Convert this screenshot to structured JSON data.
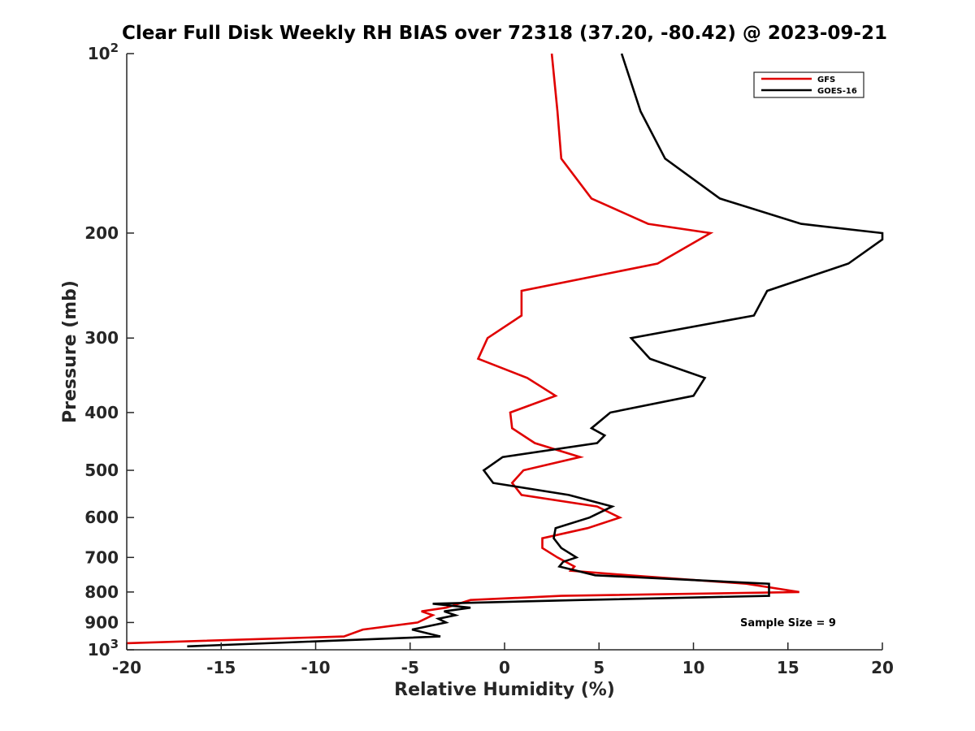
{
  "chart_data": {
    "type": "line",
    "title": "Clear Full Disk Weekly RH BIAS over 72318 (37.20, -80.42) @ 2023-09-21",
    "xlabel": "Relative Humidity (%)",
    "ylabel": "Pressure (mb)",
    "xlim": [
      -20,
      20
    ],
    "ylim": [
      100,
      1000
    ],
    "y_scale": "log",
    "y_reversed": true,
    "x_ticks": [
      -20,
      -15,
      -10,
      -5,
      0,
      5,
      10,
      15,
      20
    ],
    "x_tick_labels": [
      "-20",
      "-15",
      "-10",
      "-5",
      "0",
      "5",
      "10",
      "15",
      "20"
    ],
    "y_ticks": [
      100,
      200,
      300,
      400,
      500,
      600,
      700,
      800,
      900,
      1000
    ],
    "y_tick_labels": [
      {
        "base": "10",
        "exp": "2"
      },
      {
        "base": "200",
        "exp": ""
      },
      {
        "base": "300",
        "exp": ""
      },
      {
        "base": "400",
        "exp": ""
      },
      {
        "base": "500",
        "exp": ""
      },
      {
        "base": "600",
        "exp": ""
      },
      {
        "base": "700",
        "exp": ""
      },
      {
        "base": "800",
        "exp": ""
      },
      {
        "base": "900",
        "exp": ""
      },
      {
        "base": "10",
        "exp": "3"
      }
    ],
    "grid": false,
    "legend_position": "top-right",
    "annotation": "Sample Size = 9",
    "series": [
      {
        "name": "GFS",
        "color": "#e00000",
        "points": [
          [
            2.5,
            100
          ],
          [
            2.8,
            125
          ],
          [
            3.0,
            150
          ],
          [
            4.6,
            175
          ],
          [
            7.6,
            193
          ],
          [
            10.9,
            200
          ],
          [
            8.1,
            225
          ],
          [
            0.9,
            250
          ],
          [
            0.9,
            275
          ],
          [
            -0.9,
            300
          ],
          [
            -1.4,
            325
          ],
          [
            1.2,
            350
          ],
          [
            2.7,
            375
          ],
          [
            0.3,
            400
          ],
          [
            0.4,
            425
          ],
          [
            1.6,
            450
          ],
          [
            4.0,
            475
          ],
          [
            1.0,
            500
          ],
          [
            0.4,
            525
          ],
          [
            0.9,
            550
          ],
          [
            4.9,
            575
          ],
          [
            6.1,
            600
          ],
          [
            4.4,
            625
          ],
          [
            2.0,
            650
          ],
          [
            2.0,
            675
          ],
          [
            2.8,
            700
          ],
          [
            3.7,
            725
          ],
          [
            3.5,
            737
          ],
          [
            6.6,
            750
          ],
          [
            12.8,
            775
          ],
          [
            15.6,
            800
          ],
          [
            3.0,
            812
          ],
          [
            -1.8,
            825
          ],
          [
            -3.1,
            850
          ],
          [
            -4.4,
            862
          ],
          [
            -3.8,
            875
          ],
          [
            -4.6,
            900
          ],
          [
            -7.5,
            925
          ],
          [
            -8.5,
            950
          ],
          [
            -20.0,
            975
          ]
        ]
      },
      {
        "name": "GOES-16",
        "color": "#000000",
        "points": [
          [
            6.2,
            100
          ],
          [
            7.2,
            125
          ],
          [
            8.5,
            150
          ],
          [
            11.4,
            175
          ],
          [
            15.7,
            193
          ],
          [
            20.0,
            200
          ],
          [
            20.0,
            205
          ],
          [
            18.2,
            225
          ],
          [
            13.9,
            250
          ],
          [
            13.2,
            275
          ],
          [
            6.7,
            300
          ],
          [
            7.7,
            325
          ],
          [
            10.6,
            350
          ],
          [
            10.0,
            375
          ],
          [
            5.6,
            400
          ],
          [
            4.6,
            425
          ],
          [
            5.3,
            437
          ],
          [
            4.9,
            450
          ],
          [
            -0.1,
            475
          ],
          [
            -1.1,
            500
          ],
          [
            -0.6,
            525
          ],
          [
            3.4,
            550
          ],
          [
            5.7,
            575
          ],
          [
            4.5,
            600
          ],
          [
            2.7,
            625
          ],
          [
            2.6,
            650
          ],
          [
            3.0,
            675
          ],
          [
            3.8,
            700
          ],
          [
            3.1,
            712
          ],
          [
            2.9,
            725
          ],
          [
            4.8,
            750
          ],
          [
            14.0,
            775
          ],
          [
            14.0,
            812
          ],
          [
            4.1,
            825
          ],
          [
            -3.8,
            837
          ],
          [
            -1.8,
            850
          ],
          [
            -3.2,
            862
          ],
          [
            -2.6,
            875
          ],
          [
            -3.5,
            887
          ],
          [
            -3.1,
            900
          ],
          [
            -4.9,
            925
          ],
          [
            -3.4,
            950
          ],
          [
            -16.8,
            987
          ]
        ]
      }
    ]
  }
}
